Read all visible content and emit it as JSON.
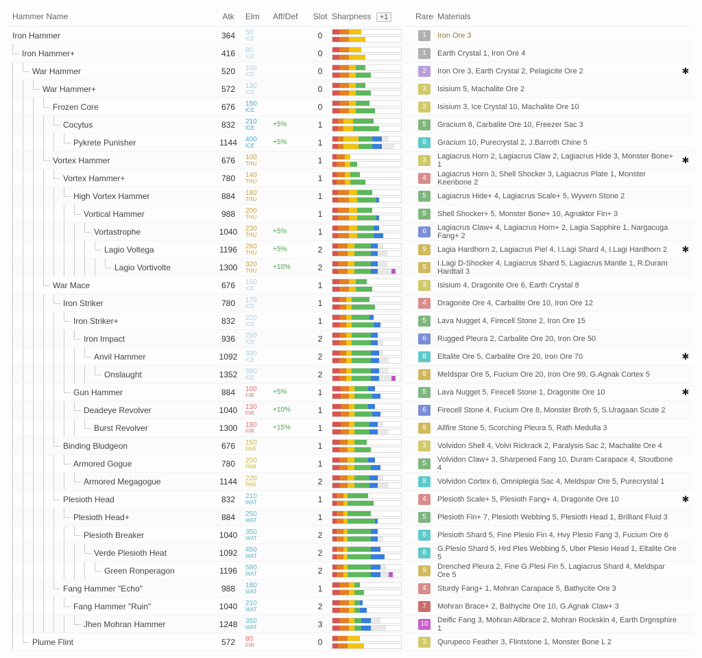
{
  "headers": {
    "name": "Hammer Name",
    "atk": "Atk",
    "elm": "Elm",
    "aff": "Aff/Def",
    "slot": "Slot",
    "sharp": "Sharpness",
    "plus": "+1",
    "rare": "Rare",
    "mat": "Materials"
  },
  "rare_colors": {
    "1": "#b0b0b0",
    "2": "#b89ddb",
    "3": "#cfc96a",
    "4": "#d88c8c",
    "5": "#7fb57f",
    "6": "#7a8dd6",
    "7": "#c96d6d",
    "8": "#5fc9c9",
    "9": "#d0b85f",
    "10": "#c95fc9"
  },
  "sharp_colors": [
    "#d9534f",
    "#e67e22",
    "#f1c40f",
    "#5cb85c",
    "#357edd",
    "#e8e8e8",
    "#c154c1"
  ],
  "rows": [
    {
      "depth": 0,
      "name": "Iron Hammer",
      "atk": 364,
      "elmV": "50",
      "elmT": "ICE",
      "elmCls": "e-ice-dim",
      "aff": "",
      "slot": 0,
      "s1": [
        10,
        14,
        18,
        0,
        0,
        0,
        0
      ],
      "s2": [
        10,
        14,
        24,
        0,
        0,
        0,
        0
      ],
      "rare": 1,
      "mat": "Iron Ore 3",
      "matColor": "#8a7a3a",
      "star": false
    },
    {
      "depth": 1,
      "name": "Iron Hammer+",
      "atk": 416,
      "elmV": "80",
      "elmT": "ICE",
      "elmCls": "e-ice-dim",
      "aff": "",
      "slot": 0,
      "s1": [
        10,
        14,
        18,
        0,
        0,
        0,
        0
      ],
      "s2": [
        10,
        14,
        24,
        0,
        0,
        0,
        0
      ],
      "rare": 1,
      "mat": "Earth Crystal 1, Iron Ore 4",
      "star": false
    },
    {
      "depth": 2,
      "name": "War Hammer",
      "atk": 520,
      "elmV": "100",
      "elmT": "ICE",
      "elmCls": "e-ice-dim",
      "aff": "",
      "slot": 0,
      "s1": [
        10,
        14,
        10,
        14,
        0,
        0,
        0
      ],
      "s2": [
        10,
        14,
        10,
        22,
        0,
        0,
        0
      ],
      "rare": 2,
      "mat": "Iron Ore 3, Earth Crystal 2, Pelagicite Ore 2",
      "star": true
    },
    {
      "depth": 3,
      "name": "War Hammer+",
      "atk": 572,
      "elmV": "130",
      "elmT": "ICE",
      "elmCls": "e-ice-dim",
      "aff": "",
      "slot": 0,
      "s1": [
        10,
        14,
        10,
        14,
        0,
        0,
        0
      ],
      "s2": [
        10,
        14,
        10,
        22,
        0,
        0,
        0
      ],
      "rare": 3,
      "mat": "Isisium 5, Machalite Ore 2",
      "star": false
    },
    {
      "depth": 4,
      "name": "Frozen Core",
      "atk": 676,
      "elmV": "150",
      "elmT": "ICE",
      "elmCls": "e-ice",
      "aff": "",
      "slot": 0,
      "s1": [
        10,
        14,
        10,
        20,
        0,
        0,
        0
      ],
      "s2": [
        10,
        14,
        10,
        28,
        0,
        0,
        0
      ],
      "rare": 3,
      "mat": "Isisium 3, Ice Crystal 10, Machalite Ore 10",
      "star": false
    },
    {
      "depth": 5,
      "name": "Cocytus",
      "atk": 832,
      "elmV": "210",
      "elmT": "ICE",
      "elmCls": "e-ice",
      "aff": "+5%",
      "slot": 1,
      "s1": [
        8,
        8,
        14,
        30,
        0,
        0,
        0
      ],
      "s2": [
        8,
        8,
        14,
        38,
        0,
        0,
        0
      ],
      "rare": 5,
      "mat": "Gracium 8, Carbalite Ore 10, Freezer Sac 3",
      "star": false
    },
    {
      "depth": 6,
      "name": "Pykrete Punisher",
      "atk": 1144,
      "elmV": "400",
      "elmT": "ICE",
      "elmCls": "e-ice",
      "aff": "+5%",
      "slot": 1,
      "s1": [
        8,
        8,
        22,
        20,
        14,
        10,
        0
      ],
      "s2": [
        8,
        8,
        22,
        20,
        14,
        18,
        0
      ],
      "rare": 8,
      "mat": "Gracium 10, Purecrystal 2, J.Barroth Chine 5",
      "star": false
    },
    {
      "depth": 4,
      "name": "Vortex Hammer",
      "atk": 676,
      "elmV": "100",
      "elmT": "THU",
      "elmCls": "e-thu",
      "aff": "",
      "slot": 1,
      "s1": [
        6,
        12,
        8,
        0,
        0,
        0,
        0
      ],
      "s2": [
        6,
        12,
        8,
        10,
        0,
        0,
        0
      ],
      "rare": 3,
      "mat": "Lagiacrus Horn 2, Lagiacrus Claw 2, Lagiacrus Hide 3, Monster Bone+ 1",
      "star": true
    },
    {
      "depth": 5,
      "name": "Vortex Hammer+",
      "atk": 780,
      "elmV": "140",
      "elmT": "THU",
      "elmCls": "e-thu",
      "aff": "",
      "slot": 1,
      "s1": [
        6,
        12,
        8,
        14,
        0,
        0,
        0
      ],
      "s2": [
        6,
        12,
        8,
        22,
        0,
        0,
        0
      ],
      "rare": 4,
      "mat": "Lagiacrus Horn 3, Shell Shocker 3, Lagiacrus Plate 1, Monster Keenbone 2",
      "star": false
    },
    {
      "depth": 6,
      "name": "High Vortex Hammer",
      "atk": 884,
      "elmV": "180",
      "elmT": "THU",
      "elmCls": "e-thu",
      "aff": "",
      "slot": 1,
      "s1": [
        8,
        16,
        12,
        22,
        0,
        0,
        0
      ],
      "s2": [
        8,
        16,
        12,
        28,
        4,
        0,
        0
      ],
      "rare": 5,
      "mat": "Lagiacrus Hide+ 4, Lagiacrus Scale+ 5, Wyvern Stone 2",
      "star": false
    },
    {
      "depth": 7,
      "name": "Vortical Hammer",
      "atk": 988,
      "elmV": "200",
      "elmT": "THU",
      "elmCls": "e-thu",
      "aff": "",
      "slot": 1,
      "s1": [
        8,
        16,
        12,
        22,
        0,
        0,
        0
      ],
      "s2": [
        8,
        16,
        12,
        28,
        4,
        0,
        0
      ],
      "rare": 5,
      "mat": "Shell Shocker+ 5, Monster Bone+ 10, Agnaktor Fin+ 3",
      "star": false
    },
    {
      "depth": 8,
      "name": "Vortastrophe",
      "atk": 1040,
      "elmV": "230",
      "elmT": "THU",
      "elmCls": "e-thu",
      "aff": "+5%",
      "slot": 1,
      "s1": [
        8,
        16,
        12,
        24,
        8,
        0,
        0
      ],
      "s2": [
        8,
        16,
        12,
        24,
        14,
        0,
        0
      ],
      "rare": 6,
      "mat": "Lagiacrus Claw+ 4, Lagiacrus Horn+ 2, Lagia Sapphire 1, Nargacuga Fang+ 2",
      "star": false
    },
    {
      "depth": 9,
      "name": "Lagio Voltega",
      "atk": 1196,
      "elmV": "280",
      "elmT": "THU",
      "elmCls": "e-thu",
      "aff": "+5%",
      "slot": 2,
      "s1": [
        8,
        14,
        10,
        24,
        10,
        8,
        0
      ],
      "s2": [
        8,
        14,
        10,
        24,
        10,
        14,
        0
      ],
      "rare": 9,
      "mat": "Lagia Hardhorn 2, Lagiacrus Piel 4, I.Lagi Shard 4, I.Lagi Hardhorn 2",
      "star": true
    },
    {
      "depth": 10,
      "name": "Lagio Vortivolte",
      "atk": 1300,
      "elmV": "320",
      "elmT": "THU",
      "elmCls": "e-thu",
      "aff": "+10%",
      "slot": 2,
      "s1": [
        8,
        14,
        10,
        24,
        10,
        14,
        0
      ],
      "s2": [
        8,
        14,
        10,
        24,
        10,
        20,
        6
      ],
      "rare": 9,
      "mat": "I.Lagi D-Shocker 4, Lagiacrus Shard 5, Lagiacrus Mantle 1, R.Duram Hardtail 3",
      "star": false
    },
    {
      "depth": 4,
      "name": "War Mace",
      "atk": 676,
      "elmV": "150",
      "elmT": "ICE",
      "elmCls": "e-ice-dim",
      "aff": "",
      "slot": 1,
      "s1": [
        10,
        14,
        10,
        16,
        0,
        0,
        0
      ],
      "s2": [
        10,
        14,
        10,
        24,
        0,
        0,
        0
      ],
      "rare": 3,
      "mat": "Isisium 4, Dragonite Ore 6, Earth Crystal 8",
      "star": false
    },
    {
      "depth": 5,
      "name": "Iron Striker",
      "atk": 780,
      "elmV": "170",
      "elmT": "ICE",
      "elmCls": "e-ice-dim",
      "aff": "",
      "slot": 1,
      "s1": [
        10,
        10,
        8,
        26,
        0,
        0,
        0
      ],
      "s2": [
        10,
        10,
        8,
        34,
        0,
        0,
        0
      ],
      "rare": 4,
      "mat": "Dragonite Ore 4, Carbalite Ore 10, Iron Ore 12",
      "star": false
    },
    {
      "depth": 6,
      "name": "Iron Striker+",
      "atk": 832,
      "elmV": "220",
      "elmT": "ICE",
      "elmCls": "e-ice-dim",
      "aff": "",
      "slot": 1,
      "s1": [
        10,
        10,
        8,
        26,
        6,
        0,
        0
      ],
      "s2": [
        10,
        10,
        8,
        32,
        10,
        0,
        0
      ],
      "rare": 5,
      "mat": "Lava Nugget 4, Firecell Stone 2, Iron Ore 15",
      "star": false
    },
    {
      "depth": 7,
      "name": "Iron Impact",
      "atk": 936,
      "elmV": "250",
      "elmT": "ICE",
      "elmCls": "e-ice-dim",
      "aff": "",
      "slot": 2,
      "s1": [
        10,
        10,
        8,
        28,
        10,
        0,
        0
      ],
      "s2": [
        10,
        10,
        8,
        28,
        10,
        8,
        0
      ],
      "rare": 6,
      "mat": "Rugged Pleura 2, Carbalite Ore 20, Iron Ore 50",
      "star": false
    },
    {
      "depth": 8,
      "name": "Anvil Hammer",
      "atk": 1092,
      "elmV": "330",
      "elmT": "ICE",
      "elmCls": "e-ice-dim",
      "aff": "",
      "slot": 2,
      "s1": [
        10,
        10,
        8,
        28,
        12,
        6,
        0
      ],
      "s2": [
        10,
        10,
        8,
        28,
        12,
        14,
        0
      ],
      "rare": 8,
      "mat": "Eltalite Ore 5, Carbalite Ore 20, Iron Ore 70",
      "star": true
    },
    {
      "depth": 9,
      "name": "Onslaught",
      "atk": 1352,
      "elmV": "380",
      "elmT": "ICE",
      "elmCls": "e-ice-dim",
      "aff": "",
      "slot": 2,
      "s1": [
        10,
        10,
        8,
        28,
        12,
        14,
        0
      ],
      "s2": [
        10,
        10,
        8,
        28,
        12,
        18,
        6
      ],
      "rare": 9,
      "mat": "Meldspar Ore 5, Fucium Ore 20, Iron Ore 99, G.Agnak Cortex 5",
      "star": false
    },
    {
      "depth": 6,
      "name": "Gun Hammer",
      "atk": 884,
      "elmV": "100",
      "elmT": "FIR",
      "elmCls": "e-fir",
      "aff": "+5%",
      "slot": 1,
      "s1": [
        12,
        12,
        8,
        20,
        10,
        0,
        0
      ],
      "s2": [
        12,
        12,
        8,
        26,
        12,
        0,
        0
      ],
      "rare": 5,
      "mat": "Lava Nugget 5, Firecell Stone 1, Dragonite Ore 10",
      "star": true
    },
    {
      "depth": 7,
      "name": "Deadeye Revolver",
      "atk": 1040,
      "elmV": "130",
      "elmT": "FIR",
      "elmCls": "e-fir",
      "aff": "+10%",
      "slot": 1,
      "s1": [
        12,
        12,
        8,
        20,
        10,
        0,
        0
      ],
      "s2": [
        12,
        12,
        8,
        26,
        12,
        0,
        0
      ],
      "rare": 6,
      "mat": "Firecell Stone 4, Fucium Ore 8, Monster Broth 5, S.Uragaan Scute 2",
      "star": false
    },
    {
      "depth": 8,
      "name": "Burst Revolver",
      "atk": 1300,
      "elmV": "180",
      "elmT": "FIR",
      "elmCls": "e-fir",
      "aff": "+15%",
      "slot": 1,
      "s1": [
        12,
        12,
        8,
        22,
        12,
        8,
        0
      ],
      "s2": [
        12,
        12,
        8,
        22,
        12,
        16,
        0
      ],
      "rare": 9,
      "mat": "Allfire Stone 5, Scorching Pleura 5, Rath Medulla 3",
      "star": false
    },
    {
      "depth": 5,
      "name": "Binding Bludgeon",
      "atk": 676,
      "elmV": "150",
      "elmT": "PAR",
      "elmCls": "e-par",
      "aff": "",
      "slot": 1,
      "s1": [
        10,
        12,
        10,
        18,
        0,
        0,
        0
      ],
      "s2": [
        10,
        12,
        10,
        24,
        0,
        0,
        0
      ],
      "rare": 3,
      "mat": "Volvidon Shell 4, Volvi Rickrack 2, Paralysis Sac 2, Machalite Ore 4",
      "star": false
    },
    {
      "depth": 6,
      "name": "Armored Gogue",
      "atk": 780,
      "elmV": "200",
      "elmT": "PAR",
      "elmCls": "e-par",
      "aff": "",
      "slot": 1,
      "s1": [
        10,
        12,
        10,
        20,
        10,
        0,
        0
      ],
      "s2": [
        10,
        12,
        10,
        24,
        14,
        0,
        0
      ],
      "rare": 5,
      "mat": "Volvidon Claw+ 3, Sharpened Fang 10, Duram Carapace 4, Stoutbone 4",
      "star": false
    },
    {
      "depth": 7,
      "name": "Armored Megagogue",
      "atk": 1144,
      "elmV": "220",
      "elmT": "PAR",
      "elmCls": "e-par",
      "aff": "",
      "slot": 2,
      "s1": [
        10,
        12,
        10,
        22,
        12,
        8,
        0
      ],
      "s2": [
        10,
        12,
        10,
        22,
        12,
        16,
        0
      ],
      "rare": 8,
      "mat": "Volvidon Cortex 6, Omniplegia Sac 4, Meldspar Ore 5, Purecrystal 1",
      "star": false
    },
    {
      "depth": 5,
      "name": "Plesioth Head",
      "atk": 832,
      "elmV": "210",
      "elmT": "WAT",
      "elmCls": "e-wat",
      "aff": "",
      "slot": 1,
      "s1": [
        6,
        10,
        6,
        30,
        0,
        0,
        0
      ],
      "s2": [
        6,
        10,
        6,
        38,
        0,
        0,
        0
      ],
      "rare": 4,
      "mat": "Plesioth Scale+ 5, Plesioth Fang+ 4, Dragonite Ore 10",
      "star": true
    },
    {
      "depth": 6,
      "name": "Plesioth Head+",
      "atk": 884,
      "elmV": "250",
      "elmT": "WAT",
      "elmCls": "e-wat",
      "aff": "",
      "slot": 1,
      "s1": [
        6,
        10,
        6,
        34,
        0,
        0,
        0
      ],
      "s2": [
        6,
        10,
        6,
        40,
        4,
        0,
        0
      ],
      "rare": 5,
      "mat": "Plesioth Fin+ 7, Plesioth Webbing 5, Plesioth Head 1, Brilliant Fluid 3",
      "star": false
    },
    {
      "depth": 7,
      "name": "Plesioth Breaker",
      "atk": 1040,
      "elmV": "350",
      "elmT": "WAT",
      "elmCls": "e-wat",
      "aff": "",
      "slot": 2,
      "s1": [
        6,
        10,
        6,
        34,
        10,
        0,
        0
      ],
      "s2": [
        6,
        10,
        6,
        34,
        10,
        8,
        0
      ],
      "rare": 8,
      "mat": "Plesioth Shard 5, Fine Plesio Fin 4, Hvy Plesio Fang 3, Fucium Ore 6",
      "star": false
    },
    {
      "depth": 8,
      "name": "Verde Plesioth Heat",
      "atk": 1092,
      "elmV": "450",
      "elmT": "WAT",
      "elmCls": "e-wat",
      "aff": "",
      "slot": 2,
      "s1": [
        6,
        10,
        6,
        34,
        14,
        0,
        0
      ],
      "s2": [
        6,
        10,
        6,
        34,
        20,
        0,
        0
      ],
      "rare": 8,
      "mat": "G.Plesio Shard 5, Hrd Ples Webbing 5, Uber Plesio Head 1, Eltalite Ore 5",
      "star": false
    },
    {
      "depth": 9,
      "name": "Green Ronperagon",
      "atk": 1196,
      "elmV": "580",
      "elmT": "WAT",
      "elmCls": "e-wat",
      "aff": "",
      "slot": 2,
      "s1": [
        6,
        10,
        6,
        34,
        14,
        8,
        0
      ],
      "s2": [
        6,
        10,
        6,
        34,
        14,
        12,
        6
      ],
      "rare": 9,
      "mat": "Drenched Pleura 2, Fine G.Plesi Fin 5, Lagiacrus Shard 4, Meldspar Ore 5",
      "star": false
    },
    {
      "depth": 5,
      "name": "Fang Hammer \"Echo\"",
      "atk": 988,
      "elmV": "180",
      "elmT": "WAT",
      "elmCls": "e-wat",
      "aff": "",
      "slot": 1,
      "s1": [
        10,
        14,
        8,
        8,
        0,
        0,
        0
      ],
      "s2": [
        10,
        14,
        8,
        14,
        0,
        0,
        0
      ],
      "rare": 4,
      "mat": "Sturdy Fang+ 1, Mohran Carapace 5, Bathycite Ore 3",
      "star": false
    },
    {
      "depth": 6,
      "name": "Fang Hammer \"Ruin\"",
      "atk": 1040,
      "elmV": "210",
      "elmT": "WAT",
      "elmCls": "e-wat",
      "aff": "",
      "slot": 2,
      "s1": [
        10,
        14,
        8,
        8,
        4,
        0,
        0
      ],
      "s2": [
        10,
        14,
        8,
        8,
        10,
        0,
        0
      ],
      "rare": 7,
      "mat": "Mohran Brace+ 2, Bathycite Ore 10, G.Agnak Claw+ 3",
      "star": false
    },
    {
      "depth": 7,
      "name": "Jhen Mohran Hammer",
      "atk": 1248,
      "elmV": "350",
      "elmT": "WAT",
      "elmCls": "e-wat",
      "aff": "",
      "slot": 3,
      "s1": [
        10,
        14,
        8,
        10,
        14,
        14,
        0
      ],
      "s2": [
        10,
        14,
        8,
        10,
        14,
        22,
        0
      ],
      "rare": 10,
      "mat": "Deific Fang 3, Mohran Allbrace 2, Mohran Rockskin 4, Earth Drgnsphire 1",
      "star": false
    },
    {
      "depth": 2,
      "name": "Plume Flint",
      "atk": 572,
      "elmV": "80",
      "elmT": "FIR",
      "elmCls": "e-fir",
      "aff": "",
      "slot": 0,
      "s1": [
        8,
        14,
        18,
        0,
        0,
        0,
        0
      ],
      "s2": [
        8,
        14,
        24,
        0,
        0,
        0,
        0
      ],
      "rare": 3,
      "mat": "Qurupeco Feather 3, Flintstone 1, Monster Bone L 2",
      "star": false
    }
  ]
}
